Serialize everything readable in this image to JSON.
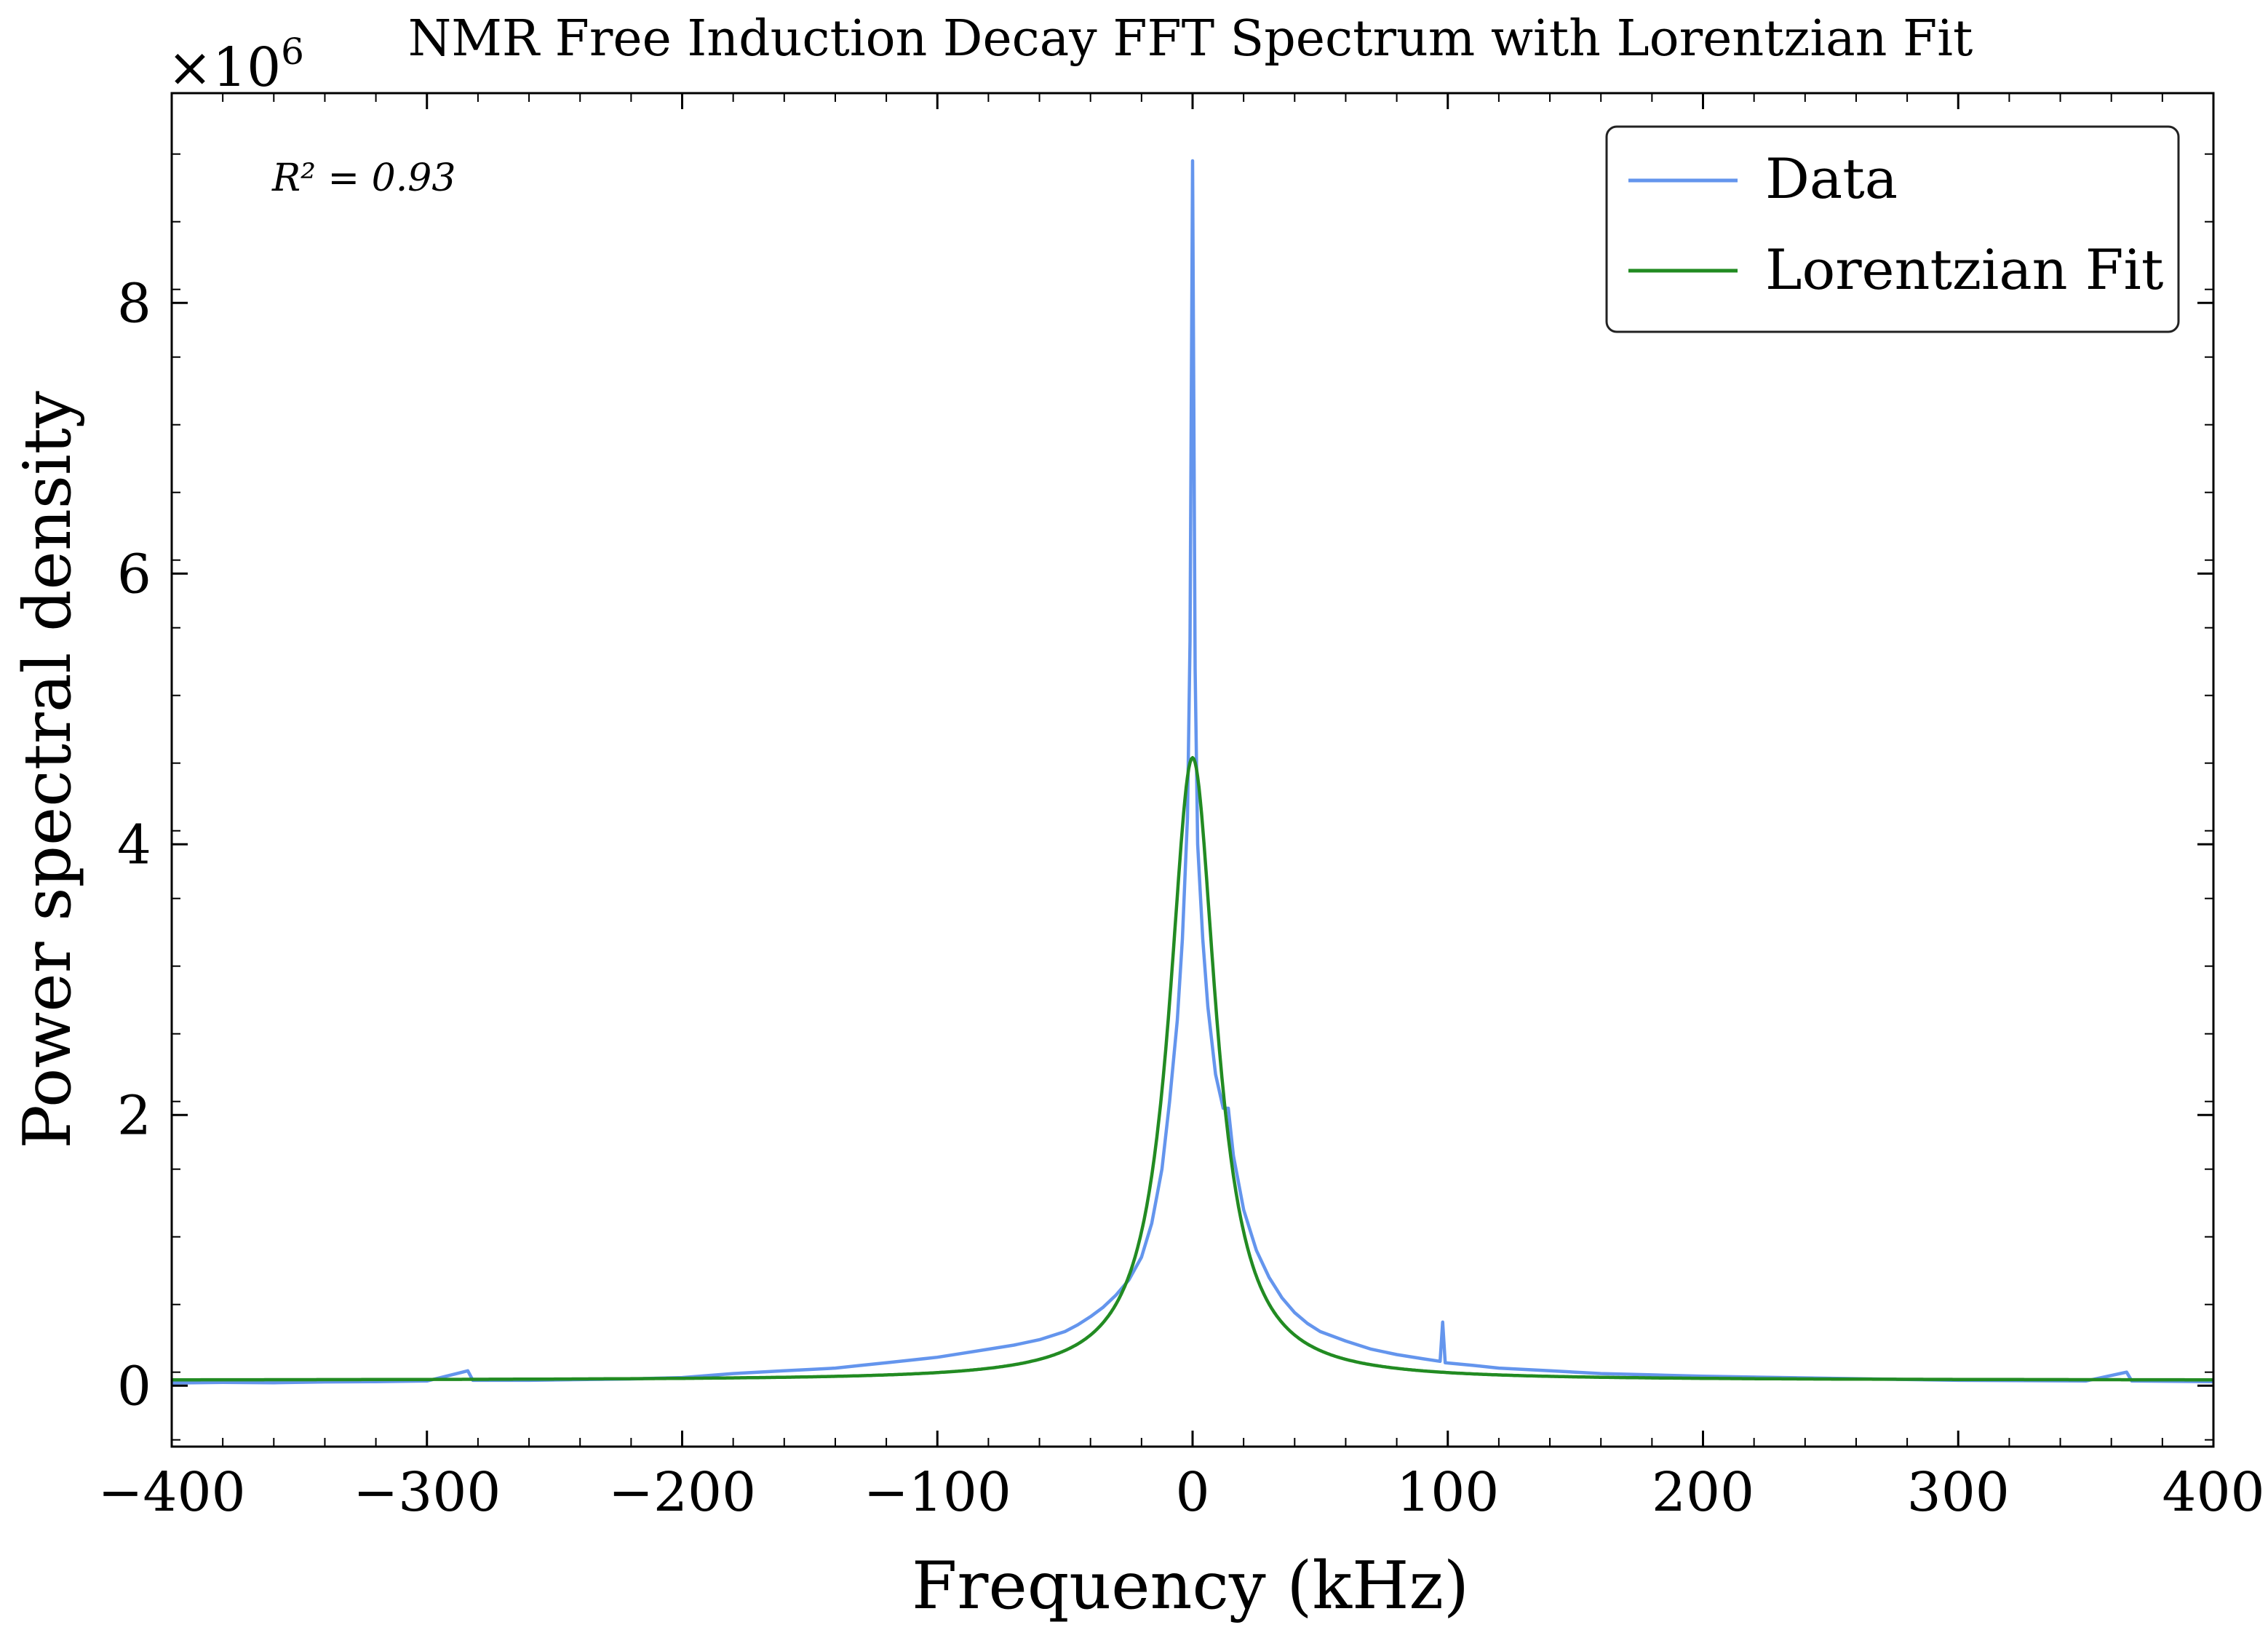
{
  "chart_data": {
    "type": "line",
    "title": "NMR Free Induction Decay FFT Spectrum with Lorentzian Fit",
    "xlabel": "Frequency (kHz)",
    "ylabel": "Power spectral density",
    "y_multiplier_label": "×10",
    "y_multiplier_exponent": "6",
    "annotation": "R² = 0.93",
    "xlim": [
      -400,
      400
    ],
    "ylim": [
      -450000,
      9550000
    ],
    "x_ticks": [
      -400,
      -300,
      -200,
      -100,
      0,
      100,
      200,
      300,
      400
    ],
    "x_tick_labels": [
      "−400",
      "−300",
      "−200",
      "−100",
      "0",
      "100",
      "200",
      "300",
      "400"
    ],
    "y_ticks": [
      0,
      2000000,
      4000000,
      6000000,
      8000000
    ],
    "y_tick_labels": [
      "0",
      "2",
      "4",
      "6",
      "8"
    ],
    "grid": false,
    "legend_position": "top-right",
    "series": [
      {
        "name": "Data",
        "color": "#6495ed",
        "points": [
          [
            -400,
            20000
          ],
          [
            -380,
            25000
          ],
          [
            -360,
            22000
          ],
          [
            -340,
            28000
          ],
          [
            -320,
            30000
          ],
          [
            -300,
            35000
          ],
          [
            -284,
            110000
          ],
          [
            -282,
            40000
          ],
          [
            -260,
            40000
          ],
          [
            -240,
            45000
          ],
          [
            -220,
            50000
          ],
          [
            -200,
            60000
          ],
          [
            -180,
            90000
          ],
          [
            -160,
            110000
          ],
          [
            -150,
            120000
          ],
          [
            -140,
            130000
          ],
          [
            -130,
            150000
          ],
          [
            -120,
            170000
          ],
          [
            -110,
            190000
          ],
          [
            -100,
            210000
          ],
          [
            -90,
            240000
          ],
          [
            -80,
            270000
          ],
          [
            -70,
            300000
          ],
          [
            -60,
            340000
          ],
          [
            -50,
            400000
          ],
          [
            -45,
            450000
          ],
          [
            -40,
            510000
          ],
          [
            -35,
            580000
          ],
          [
            -30,
            670000
          ],
          [
            -25,
            780000
          ],
          [
            -20,
            950000
          ],
          [
            -16,
            1200000
          ],
          [
            -12,
            1600000
          ],
          [
            -9,
            2100000
          ],
          [
            -6,
            2700000
          ],
          [
            -4,
            3300000
          ],
          [
            -2,
            4200000
          ],
          [
            -1,
            5500000
          ],
          [
            0,
            9050000
          ],
          [
            1,
            5300000
          ],
          [
            2,
            4000000
          ],
          [
            4,
            3300000
          ],
          [
            6,
            2800000
          ],
          [
            9,
            2300000
          ],
          [
            12,
            2050000
          ],
          [
            14,
            2050000
          ],
          [
            16,
            1700000
          ],
          [
            20,
            1300000
          ],
          [
            25,
            1000000
          ],
          [
            30,
            800000
          ],
          [
            35,
            650000
          ],
          [
            40,
            540000
          ],
          [
            45,
            460000
          ],
          [
            50,
            400000
          ],
          [
            60,
            330000
          ],
          [
            70,
            270000
          ],
          [
            80,
            230000
          ],
          [
            90,
            200000
          ],
          [
            97,
            180000
          ],
          [
            98,
            470000
          ],
          [
            99,
            170000
          ],
          [
            110,
            150000
          ],
          [
            120,
            130000
          ],
          [
            140,
            110000
          ],
          [
            160,
            90000
          ],
          [
            180,
            80000
          ],
          [
            200,
            70000
          ],
          [
            250,
            55000
          ],
          [
            300,
            40000
          ],
          [
            350,
            35000
          ],
          [
            366,
            100000
          ],
          [
            368,
            35000
          ],
          [
            400,
            30000
          ]
        ]
      },
      {
        "name": "Lorentzian Fit",
        "color": "#228b22",
        "amplitude": 4600000,
        "center": 0,
        "hwhm": 11.2,
        "offset": 40000
      }
    ]
  }
}
